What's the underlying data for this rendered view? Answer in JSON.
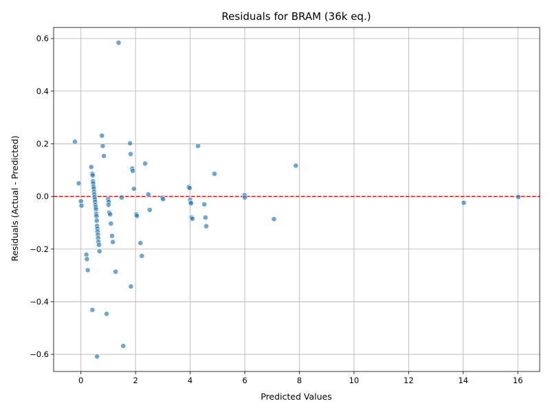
{
  "chart_data": {
    "type": "scatter",
    "title": "Residuals for BRAM (36k eq.)",
    "xlabel": "Predicted Values",
    "ylabel": "Residuals (Actual - Predicted)",
    "xlim": [
      -1.0,
      16.8
    ],
    "ylim": [
      -0.665,
      0.642
    ],
    "xticks": [
      0,
      2,
      4,
      6,
      8,
      10,
      12,
      14,
      16
    ],
    "yticks": [
      -0.6,
      -0.4,
      -0.2,
      0.0,
      0.2,
      0.4,
      0.6
    ],
    "xtick_labels": [
      "0",
      "2",
      "4",
      "6",
      "8",
      "10",
      "12",
      "14",
      "16"
    ],
    "ytick_labels": [
      "−0.6",
      "−0.4",
      "−0.2",
      "0.0",
      "0.2",
      "0.4",
      "0.6"
    ],
    "grid": true,
    "reference_line": {
      "y": 0,
      "style": "dashed",
      "color": "#ff0000"
    },
    "point_color": "#1f77b4",
    "point_alpha": 0.65,
    "points": [
      {
        "x": 1.38,
        "y": 0.584
      },
      {
        "x": -0.22,
        "y": 0.208
      },
      {
        "x": 0.77,
        "y": 0.231
      },
      {
        "x": 0.8,
        "y": 0.192
      },
      {
        "x": 0.84,
        "y": 0.154
      },
      {
        "x": 1.8,
        "y": 0.202
      },
      {
        "x": 1.82,
        "y": 0.161
      },
      {
        "x": 4.29,
        "y": 0.192
      },
      {
        "x": 2.35,
        "y": 0.125
      },
      {
        "x": 0.38,
        "y": 0.112
      },
      {
        "x": 1.88,
        "y": 0.106
      },
      {
        "x": 1.9,
        "y": 0.097
      },
      {
        "x": 0.42,
        "y": 0.086
      },
      {
        "x": 0.43,
        "y": 0.08
      },
      {
        "x": 4.89,
        "y": 0.086
      },
      {
        "x": 7.87,
        "y": 0.117
      },
      {
        "x": -0.08,
        "y": 0.05
      },
      {
        "x": 0.44,
        "y": 0.058
      },
      {
        "x": 0.45,
        "y": 0.05
      },
      {
        "x": 0.46,
        "y": 0.038
      },
      {
        "x": 0.47,
        "y": 0.03
      },
      {
        "x": 0.48,
        "y": 0.018
      },
      {
        "x": 0.49,
        "y": 0.008
      },
      {
        "x": 0.5,
        "y": -0.002
      },
      {
        "x": 0.51,
        "y": -0.01
      },
      {
        "x": 0.52,
        "y": -0.02
      },
      {
        "x": 0.53,
        "y": -0.032
      },
      {
        "x": 0.54,
        "y": -0.04
      },
      {
        "x": 0.55,
        "y": -0.048
      },
      {
        "x": 0.56,
        "y": -0.066
      },
      {
        "x": 0.57,
        "y": -0.075
      },
      {
        "x": 0.58,
        "y": -0.092
      },
      {
        "x": 0.59,
        "y": -0.112
      },
      {
        "x": 0.6,
        "y": -0.122
      },
      {
        "x": 0.61,
        "y": -0.133
      },
      {
        "x": 0.62,
        "y": -0.145
      },
      {
        "x": 0.63,
        "y": -0.158
      },
      {
        "x": 0.64,
        "y": -0.172
      },
      {
        "x": 0.66,
        "y": -0.184
      },
      {
        "x": 0.68,
        "y": -0.208
      },
      {
        "x": 0.0,
        "y": -0.018
      },
      {
        "x": 0.02,
        "y": -0.035
      },
      {
        "x": 1.94,
        "y": 0.029
      },
      {
        "x": 1.49,
        "y": -0.004
      },
      {
        "x": 1.0,
        "y": -0.01
      },
      {
        "x": 1.02,
        "y": -0.02
      },
      {
        "x": 1.01,
        "y": -0.032
      },
      {
        "x": 1.04,
        "y": -0.062
      },
      {
        "x": 1.07,
        "y": -0.068
      },
      {
        "x": 1.1,
        "y": -0.103
      },
      {
        "x": 1.14,
        "y": -0.15
      },
      {
        "x": 1.17,
        "y": -0.173
      },
      {
        "x": 2.03,
        "y": -0.068
      },
      {
        "x": 2.05,
        "y": -0.074
      },
      {
        "x": 2.47,
        "y": 0.008
      },
      {
        "x": 2.52,
        "y": -0.051
      },
      {
        "x": 2.18,
        "y": -0.177
      },
      {
        "x": 2.23,
        "y": -0.226
      },
      {
        "x": 0.2,
        "y": -0.221
      },
      {
        "x": 0.22,
        "y": -0.238
      },
      {
        "x": 0.25,
        "y": -0.28
      },
      {
        "x": 1.27,
        "y": -0.286
      },
      {
        "x": 1.83,
        "y": -0.342
      },
      {
        "x": 0.42,
        "y": -0.431
      },
      {
        "x": 0.94,
        "y": -0.446
      },
      {
        "x": 1.55,
        "y": -0.568
      },
      {
        "x": 0.59,
        "y": -0.608
      },
      {
        "x": 2.98,
        "y": -0.005
      },
      {
        "x": 3.01,
        "y": -0.01
      },
      {
        "x": 3.95,
        "y": 0.036
      },
      {
        "x": 3.98,
        "y": 0.032
      },
      {
        "x": 4.0,
        "y": -0.013
      },
      {
        "x": 4.02,
        "y": -0.022
      },
      {
        "x": 4.03,
        "y": -0.026
      },
      {
        "x": 4.05,
        "y": -0.08
      },
      {
        "x": 4.08,
        "y": -0.085
      },
      {
        "x": 4.52,
        "y": -0.03
      },
      {
        "x": 4.56,
        "y": -0.08
      },
      {
        "x": 4.59,
        "y": -0.113
      },
      {
        "x": 5.99,
        "y": 0.005
      },
      {
        "x": 6.0,
        "y": -0.004
      },
      {
        "x": 7.07,
        "y": -0.086
      },
      {
        "x": 14.02,
        "y": -0.024
      },
      {
        "x": 16.02,
        "y": -0.002
      }
    ]
  }
}
